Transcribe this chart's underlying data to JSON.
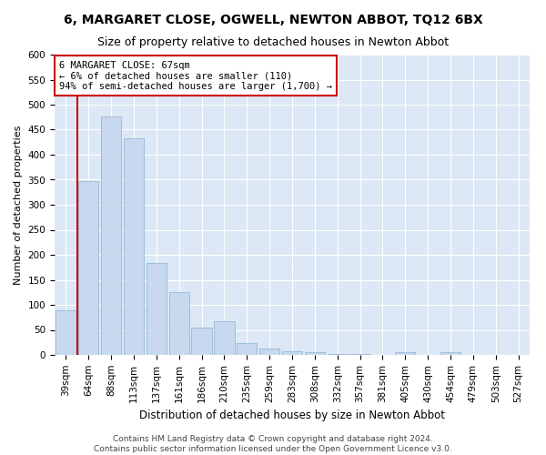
{
  "title": "6, MARGARET CLOSE, OGWELL, NEWTON ABBOT, TQ12 6BX",
  "subtitle": "Size of property relative to detached houses in Newton Abbot",
  "xlabel": "Distribution of detached houses by size in Newton Abbot",
  "ylabel": "Number of detached properties",
  "categories": [
    "39sqm",
    "64sqm",
    "88sqm",
    "113sqm",
    "137sqm",
    "161sqm",
    "186sqm",
    "210sqm",
    "235sqm",
    "259sqm",
    "283sqm",
    "308sqm",
    "332sqm",
    "357sqm",
    "381sqm",
    "405sqm",
    "430sqm",
    "454sqm",
    "479sqm",
    "503sqm",
    "527sqm"
  ],
  "values": [
    90,
    348,
    477,
    433,
    183,
    125,
    55,
    68,
    23,
    12,
    7,
    5,
    1,
    1,
    0,
    5,
    0,
    5,
    0,
    0,
    0
  ],
  "bar_color": "#c8d8ee",
  "bar_edge_color": "#8ab0d0",
  "vline_x_index": 1,
  "vline_color": "#cc0000",
  "annotation_text": "6 MARGARET CLOSE: 67sqm\n← 6% of detached houses are smaller (110)\n94% of semi-detached houses are larger (1,700) →",
  "annotation_box_facecolor": "#ffffff",
  "annotation_box_edgecolor": "#cc0000",
  "ylim": [
    0,
    600
  ],
  "yticks": [
    0,
    50,
    100,
    150,
    200,
    250,
    300,
    350,
    400,
    450,
    500,
    550,
    600
  ],
  "footer_line1": "Contains HM Land Registry data © Crown copyright and database right 2024.",
  "footer_line2": "Contains public sector information licensed under the Open Government Licence v3.0.",
  "fig_bg_color": "#ffffff",
  "plot_bg_color": "#dce8f5",
  "grid_color": "#ffffff",
  "title_fontsize": 10,
  "subtitle_fontsize": 9,
  "xlabel_fontsize": 8.5,
  "ylabel_fontsize": 8,
  "tick_fontsize": 7.5,
  "footer_fontsize": 6.5,
  "annotation_fontsize": 7.5
}
